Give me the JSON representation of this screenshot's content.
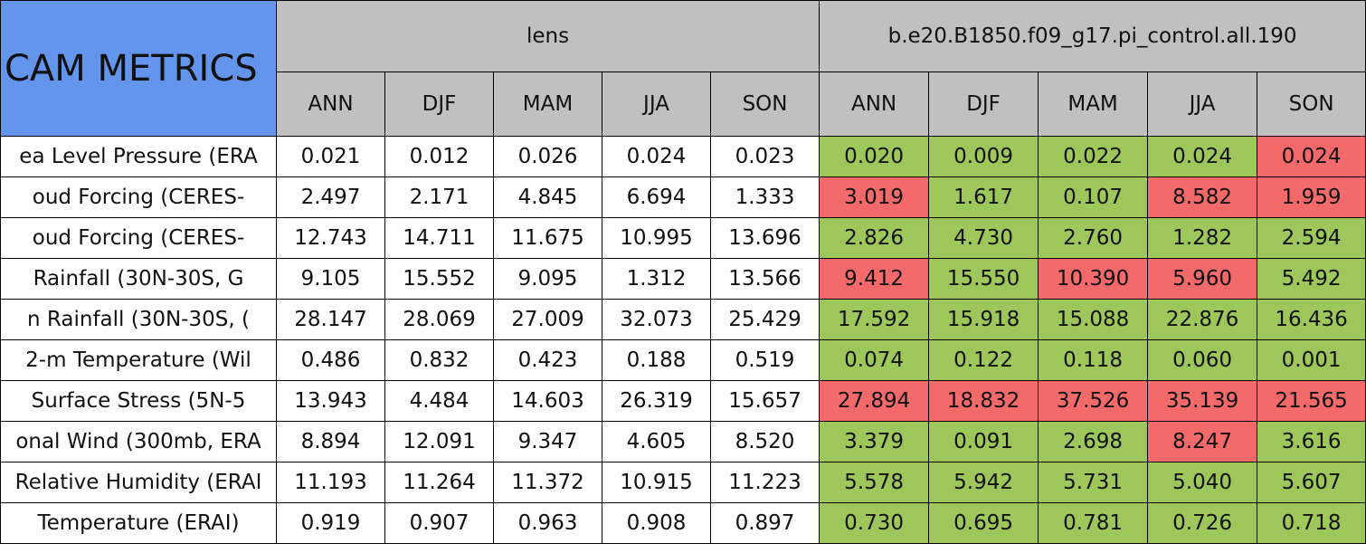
{
  "table": {
    "title": "CAM METRICS",
    "groups": [
      "lens",
      "b.e20.B1850.f09_g17.pi_control.all.190"
    ],
    "seasons": [
      "ANN",
      "DJF",
      "MAM",
      "JJA",
      "SON"
    ],
    "good_color": "#9dc75b",
    "bad_color": "#f46a6a",
    "rows": [
      {
        "label": "ea Level Pressure (ERA",
        "lens": [
          "0.021",
          "0.012",
          "0.026",
          "0.024",
          "0.023"
        ],
        "test": [
          "0.020",
          "0.009",
          "0.022",
          "0.024",
          "0.024"
        ],
        "status": [
          "good",
          "good",
          "good",
          "good",
          "bad"
        ]
      },
      {
        "label": "oud Forcing (CERES-",
        "lens": [
          "2.497",
          "2.171",
          "4.845",
          "6.694",
          "1.333"
        ],
        "test": [
          "3.019",
          "1.617",
          "0.107",
          "8.582",
          "1.959"
        ],
        "status": [
          "bad",
          "good",
          "good",
          "bad",
          "bad"
        ]
      },
      {
        "label": "oud Forcing (CERES-",
        "lens": [
          "12.743",
          "14.711",
          "11.675",
          "10.995",
          "13.696"
        ],
        "test": [
          "2.826",
          "4.730",
          "2.760",
          "1.282",
          "2.594"
        ],
        "status": [
          "good",
          "good",
          "good",
          "good",
          "good"
        ]
      },
      {
        "label": "Rainfall (30N-30S, G",
        "lens": [
          "9.105",
          "15.552",
          "9.095",
          "1.312",
          "13.566"
        ],
        "test": [
          "9.412",
          "15.550",
          "10.390",
          "5.960",
          "5.492"
        ],
        "status": [
          "bad",
          "good",
          "bad",
          "bad",
          "good"
        ]
      },
      {
        "label": "n Rainfall (30N-30S, (",
        "lens": [
          "28.147",
          "28.069",
          "27.009",
          "32.073",
          "25.429"
        ],
        "test": [
          "17.592",
          "15.918",
          "15.088",
          "22.876",
          "16.436"
        ],
        "status": [
          "good",
          "good",
          "good",
          "good",
          "good"
        ]
      },
      {
        "label": "2-m Temperature (Wil",
        "lens": [
          "0.486",
          "0.832",
          "0.423",
          "0.188",
          "0.519"
        ],
        "test": [
          "0.074",
          "0.122",
          "0.118",
          "0.060",
          "0.001"
        ],
        "status": [
          "good",
          "good",
          "good",
          "good",
          "good"
        ]
      },
      {
        "label": "Surface Stress (5N-5",
        "lens": [
          "13.943",
          "4.484",
          "14.603",
          "26.319",
          "15.657"
        ],
        "test": [
          "27.894",
          "18.832",
          "37.526",
          "35.139",
          "21.565"
        ],
        "status": [
          "bad",
          "bad",
          "bad",
          "bad",
          "bad"
        ]
      },
      {
        "label": "onal Wind (300mb, ERA",
        "lens": [
          "8.894",
          "12.091",
          "9.347",
          "4.605",
          "8.520"
        ],
        "test": [
          "3.379",
          "0.091",
          "2.698",
          "8.247",
          "3.616"
        ],
        "status": [
          "good",
          "good",
          "good",
          "bad",
          "good"
        ]
      },
      {
        "label": "Relative Humidity (ERAI",
        "lens": [
          "11.193",
          "11.264",
          "11.372",
          "10.915",
          "11.223"
        ],
        "test": [
          "5.578",
          "5.942",
          "5.731",
          "5.040",
          "5.607"
        ],
        "status": [
          "good",
          "good",
          "good",
          "good",
          "good"
        ]
      },
      {
        "label": "Temperature (ERAI)",
        "lens": [
          "0.919",
          "0.907",
          "0.963",
          "0.908",
          "0.897"
        ],
        "test": [
          "0.730",
          "0.695",
          "0.781",
          "0.726",
          "0.718"
        ],
        "status": [
          "good",
          "good",
          "good",
          "good",
          "good"
        ]
      }
    ]
  }
}
